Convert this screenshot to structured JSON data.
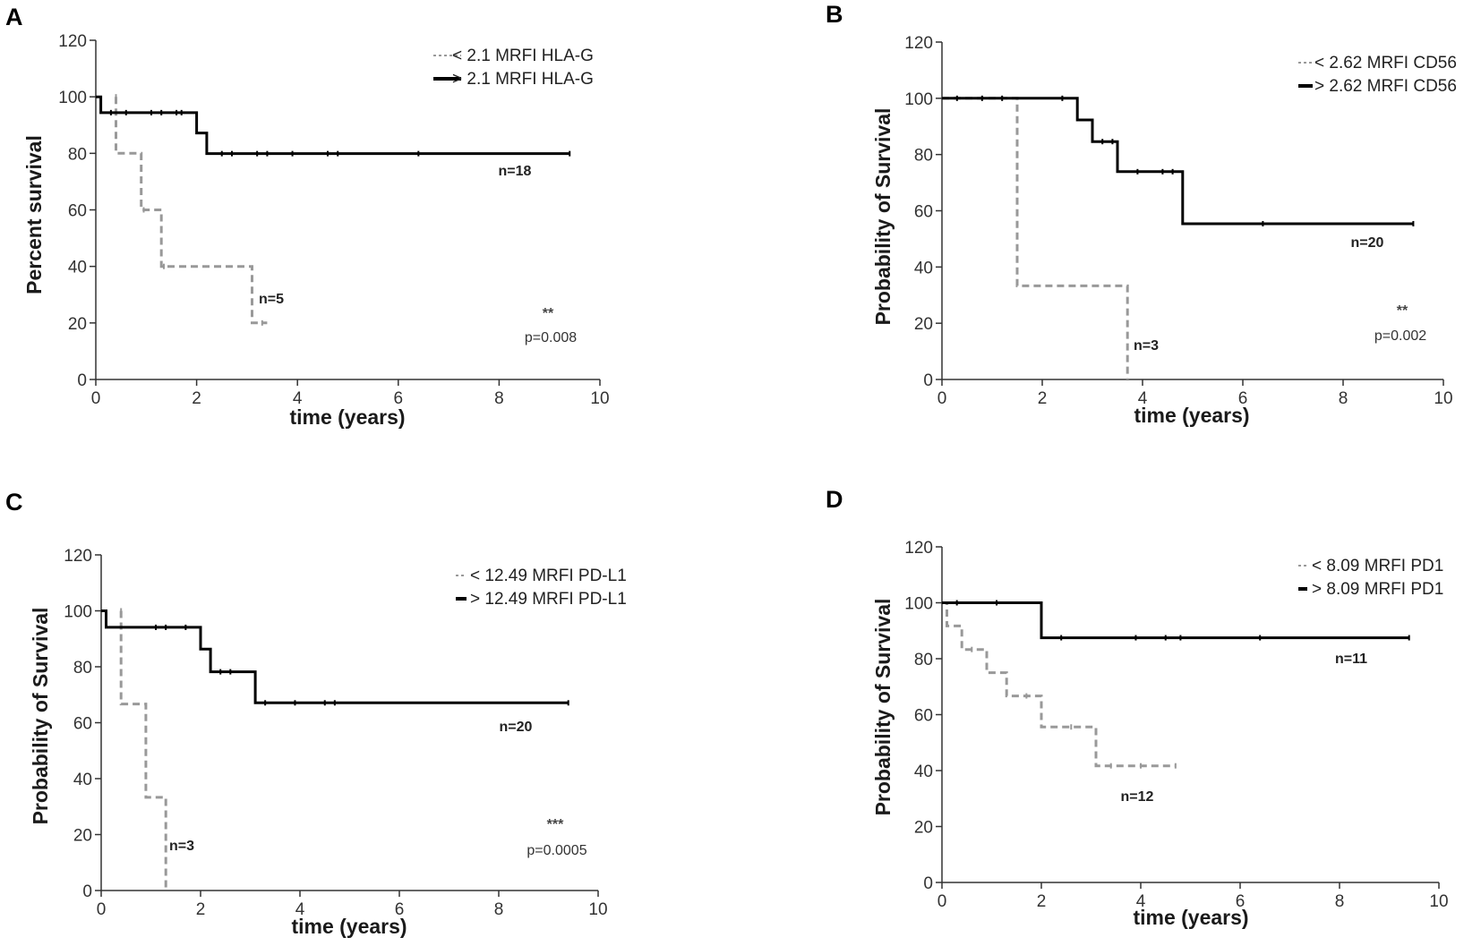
{
  "chart_data": [
    {
      "panel": "A",
      "type": "line",
      "chart_kind": "kaplan-meier",
      "xlabel": "time (years)",
      "ylabel": "Percent survival",
      "xlim": [
        0,
        10
      ],
      "ylim": [
        0,
        120
      ],
      "xticks": [
        0,
        2,
        4,
        6,
        8,
        10
      ],
      "yticks": [
        0,
        20,
        40,
        60,
        80,
        100,
        120
      ],
      "legend_position": "top-right",
      "series": [
        {
          "name": "< 2.1 MRFI HLA-G",
          "style": "dashed",
          "color": "#999999",
          "steps": [
            [
              0.4,
              100
            ],
            [
              0.4,
              80
            ],
            [
              0.9,
              80
            ],
            [
              0.9,
              60
            ],
            [
              1.3,
              60
            ],
            [
              1.3,
              40
            ],
            [
              3.1,
              40
            ],
            [
              3.1,
              20
            ],
            [
              3.4,
              20
            ]
          ],
          "censored": [
            [
              0.4,
              100
            ],
            [
              0.95,
              60
            ],
            [
              1.35,
              40
            ],
            [
              3.3,
              20
            ]
          ],
          "n_label": "n=5"
        },
        {
          "name": "> 2.1 MRFI HLA-G",
          "style": "solid",
          "color": "#000000",
          "steps": [
            [
              0,
              100
            ],
            [
              0.1,
              100
            ],
            [
              0.1,
              94.4
            ],
            [
              2.0,
              94.4
            ],
            [
              2.0,
              87.2
            ],
            [
              2.2,
              87.2
            ],
            [
              2.2,
              79.9
            ],
            [
              9.4,
              79.9
            ]
          ],
          "censored": [
            [
              0.3,
              94.4
            ],
            [
              0.6,
              94.4
            ],
            [
              1.1,
              94.4
            ],
            [
              1.3,
              94.4
            ],
            [
              1.6,
              94.4
            ],
            [
              1.7,
              94.4
            ],
            [
              2.5,
              79.9
            ],
            [
              2.7,
              79.9
            ],
            [
              3.2,
              79.9
            ],
            [
              3.4,
              79.9
            ],
            [
              3.9,
              79.9
            ],
            [
              4.6,
              79.9
            ],
            [
              4.8,
              79.9
            ],
            [
              6.4,
              79.9
            ],
            [
              9.4,
              79.9
            ]
          ],
          "n_label": "n=18"
        }
      ],
      "significance": "**",
      "p_value": "p=0.008"
    },
    {
      "panel": "B",
      "type": "line",
      "chart_kind": "kaplan-meier",
      "xlabel": "time (years)",
      "ylabel": "Probability of Survival",
      "xlim": [
        0,
        10
      ],
      "ylim": [
        0,
        120
      ],
      "xticks": [
        0,
        2,
        4,
        6,
        8,
        10
      ],
      "yticks": [
        0,
        20,
        40,
        60,
        80,
        100,
        120
      ],
      "legend_position": "top-right",
      "series": [
        {
          "name": "< 2.62 MRFI CD56",
          "style": "dashed",
          "color": "#999999",
          "steps": [
            [
              0,
              100
            ],
            [
              1.5,
              100
            ],
            [
              1.5,
              33.3
            ],
            [
              3.7,
              33.3
            ],
            [
              3.7,
              0
            ]
          ],
          "censored": [],
          "n_label": "n=3"
        },
        {
          "name": "> 2.62 MRFI CD56",
          "style": "solid",
          "color": "#000000",
          "steps": [
            [
              0,
              100
            ],
            [
              2.7,
              100
            ],
            [
              2.7,
              92.3
            ],
            [
              3.0,
              92.3
            ],
            [
              3.0,
              84.6
            ],
            [
              3.5,
              84.6
            ],
            [
              3.5,
              73.9
            ],
            [
              4.8,
              73.9
            ],
            [
              4.8,
              55.4
            ],
            [
              9.4,
              55.4
            ]
          ],
          "censored": [
            [
              0.3,
              100
            ],
            [
              0.8,
              100
            ],
            [
              1.2,
              100
            ],
            [
              2.4,
              100
            ],
            [
              3.2,
              84.6
            ],
            [
              3.4,
              84.6
            ],
            [
              3.9,
              73.9
            ],
            [
              4.4,
              73.9
            ],
            [
              4.6,
              73.9
            ],
            [
              6.4,
              55.4
            ],
            [
              9.4,
              55.4
            ]
          ],
          "n_label": "n=20"
        }
      ],
      "significance": "**",
      "p_value": "p=0.002"
    },
    {
      "panel": "C",
      "type": "line",
      "chart_kind": "kaplan-meier",
      "xlabel": "time (years)",
      "ylabel": "Probability of Survival",
      "xlim": [
        0,
        10
      ],
      "ylim": [
        0,
        120
      ],
      "xticks": [
        0,
        2,
        4,
        6,
        8,
        10
      ],
      "yticks": [
        0,
        20,
        40,
        60,
        80,
        100,
        120
      ],
      "legend_position": "top-right",
      "series": [
        {
          "name": "< 12.49 MRFI PD-L1",
          "style": "dashed",
          "color": "#999999",
          "steps": [
            [
              0.4,
              100
            ],
            [
              0.4,
              66.7
            ],
            [
              0.9,
              66.7
            ],
            [
              0.9,
              33.3
            ],
            [
              1.3,
              33.3
            ],
            [
              1.3,
              0
            ]
          ],
          "censored": [
            [
              0.4,
              100
            ]
          ],
          "n_label": "n=3"
        },
        {
          "name": "> 12.49 MRFI PD-L1",
          "style": "solid",
          "color": "#000000",
          "steps": [
            [
              0,
              100
            ],
            [
              0.1,
              100
            ],
            [
              0.1,
              94.1
            ],
            [
              2.0,
              94.1
            ],
            [
              2.0,
              86.3
            ],
            [
              2.2,
              86.3
            ],
            [
              2.2,
              78.2
            ],
            [
              3.1,
              78.2
            ],
            [
              3.1,
              67.1
            ],
            [
              9.4,
              67.1
            ]
          ],
          "censored": [
            [
              1.1,
              94.1
            ],
            [
              1.3,
              94.1
            ],
            [
              1.7,
              94.1
            ],
            [
              2.4,
              78.2
            ],
            [
              2.6,
              78.2
            ],
            [
              3.3,
              67.1
            ],
            [
              3.9,
              67.1
            ],
            [
              4.5,
              67.1
            ],
            [
              4.7,
              67.1
            ],
            [
              9.4,
              67.1
            ]
          ],
          "n_label": "n=20"
        }
      ],
      "significance": "***",
      "p_value": "p=0.0005"
    },
    {
      "panel": "D",
      "type": "line",
      "chart_kind": "kaplan-meier",
      "xlabel": "time (years)",
      "ylabel": "Probability of Survival",
      "xlim": [
        0,
        10
      ],
      "ylim": [
        0,
        120
      ],
      "xticks": [
        0,
        2,
        4,
        6,
        8,
        10
      ],
      "yticks": [
        0,
        20,
        40,
        60,
        80,
        100,
        120
      ],
      "legend_position": "top-right",
      "series": [
        {
          "name": "< 8.09 MRFI PD1",
          "style": "dashed",
          "color": "#999999",
          "steps": [
            [
              0,
              100
            ],
            [
              0.1,
              100
            ],
            [
              0.1,
              91.7
            ],
            [
              0.4,
              91.7
            ],
            [
              0.4,
              83.3
            ],
            [
              0.9,
              83.3
            ],
            [
              0.9,
              75
            ],
            [
              1.3,
              75
            ],
            [
              1.3,
              66.7
            ],
            [
              2.0,
              66.7
            ],
            [
              2.0,
              55.6
            ],
            [
              2.4,
              55.6
            ],
            [
              2.4,
              55.6
            ],
            [
              3.1,
              55.6
            ],
            [
              3.1,
              41.7
            ],
            [
              4.7,
              41.7
            ]
          ],
          "censored": [
            [
              0.6,
              83.3
            ],
            [
              1.7,
              66.7
            ],
            [
              2.6,
              55.6
            ],
            [
              3.4,
              41.7
            ],
            [
              4.0,
              41.7
            ],
            [
              4.7,
              41.7
            ]
          ],
          "n_label": "n=12"
        },
        {
          "name": "> 8.09 MRFI PD1",
          "style": "solid",
          "color": "#000000",
          "steps": [
            [
              0,
              100
            ],
            [
              2.0,
              100
            ],
            [
              2.0,
              87.5
            ],
            [
              9.4,
              87.5
            ]
          ],
          "censored": [
            [
              0.3,
              100
            ],
            [
              1.1,
              100
            ],
            [
              2.4,
              87.5
            ],
            [
              3.9,
              87.5
            ],
            [
              4.5,
              87.5
            ],
            [
              4.8,
              87.5
            ],
            [
              6.4,
              87.5
            ],
            [
              9.4,
              87.5
            ]
          ],
          "n_label": "n=11"
        }
      ],
      "significance": "",
      "p_value": ""
    }
  ]
}
